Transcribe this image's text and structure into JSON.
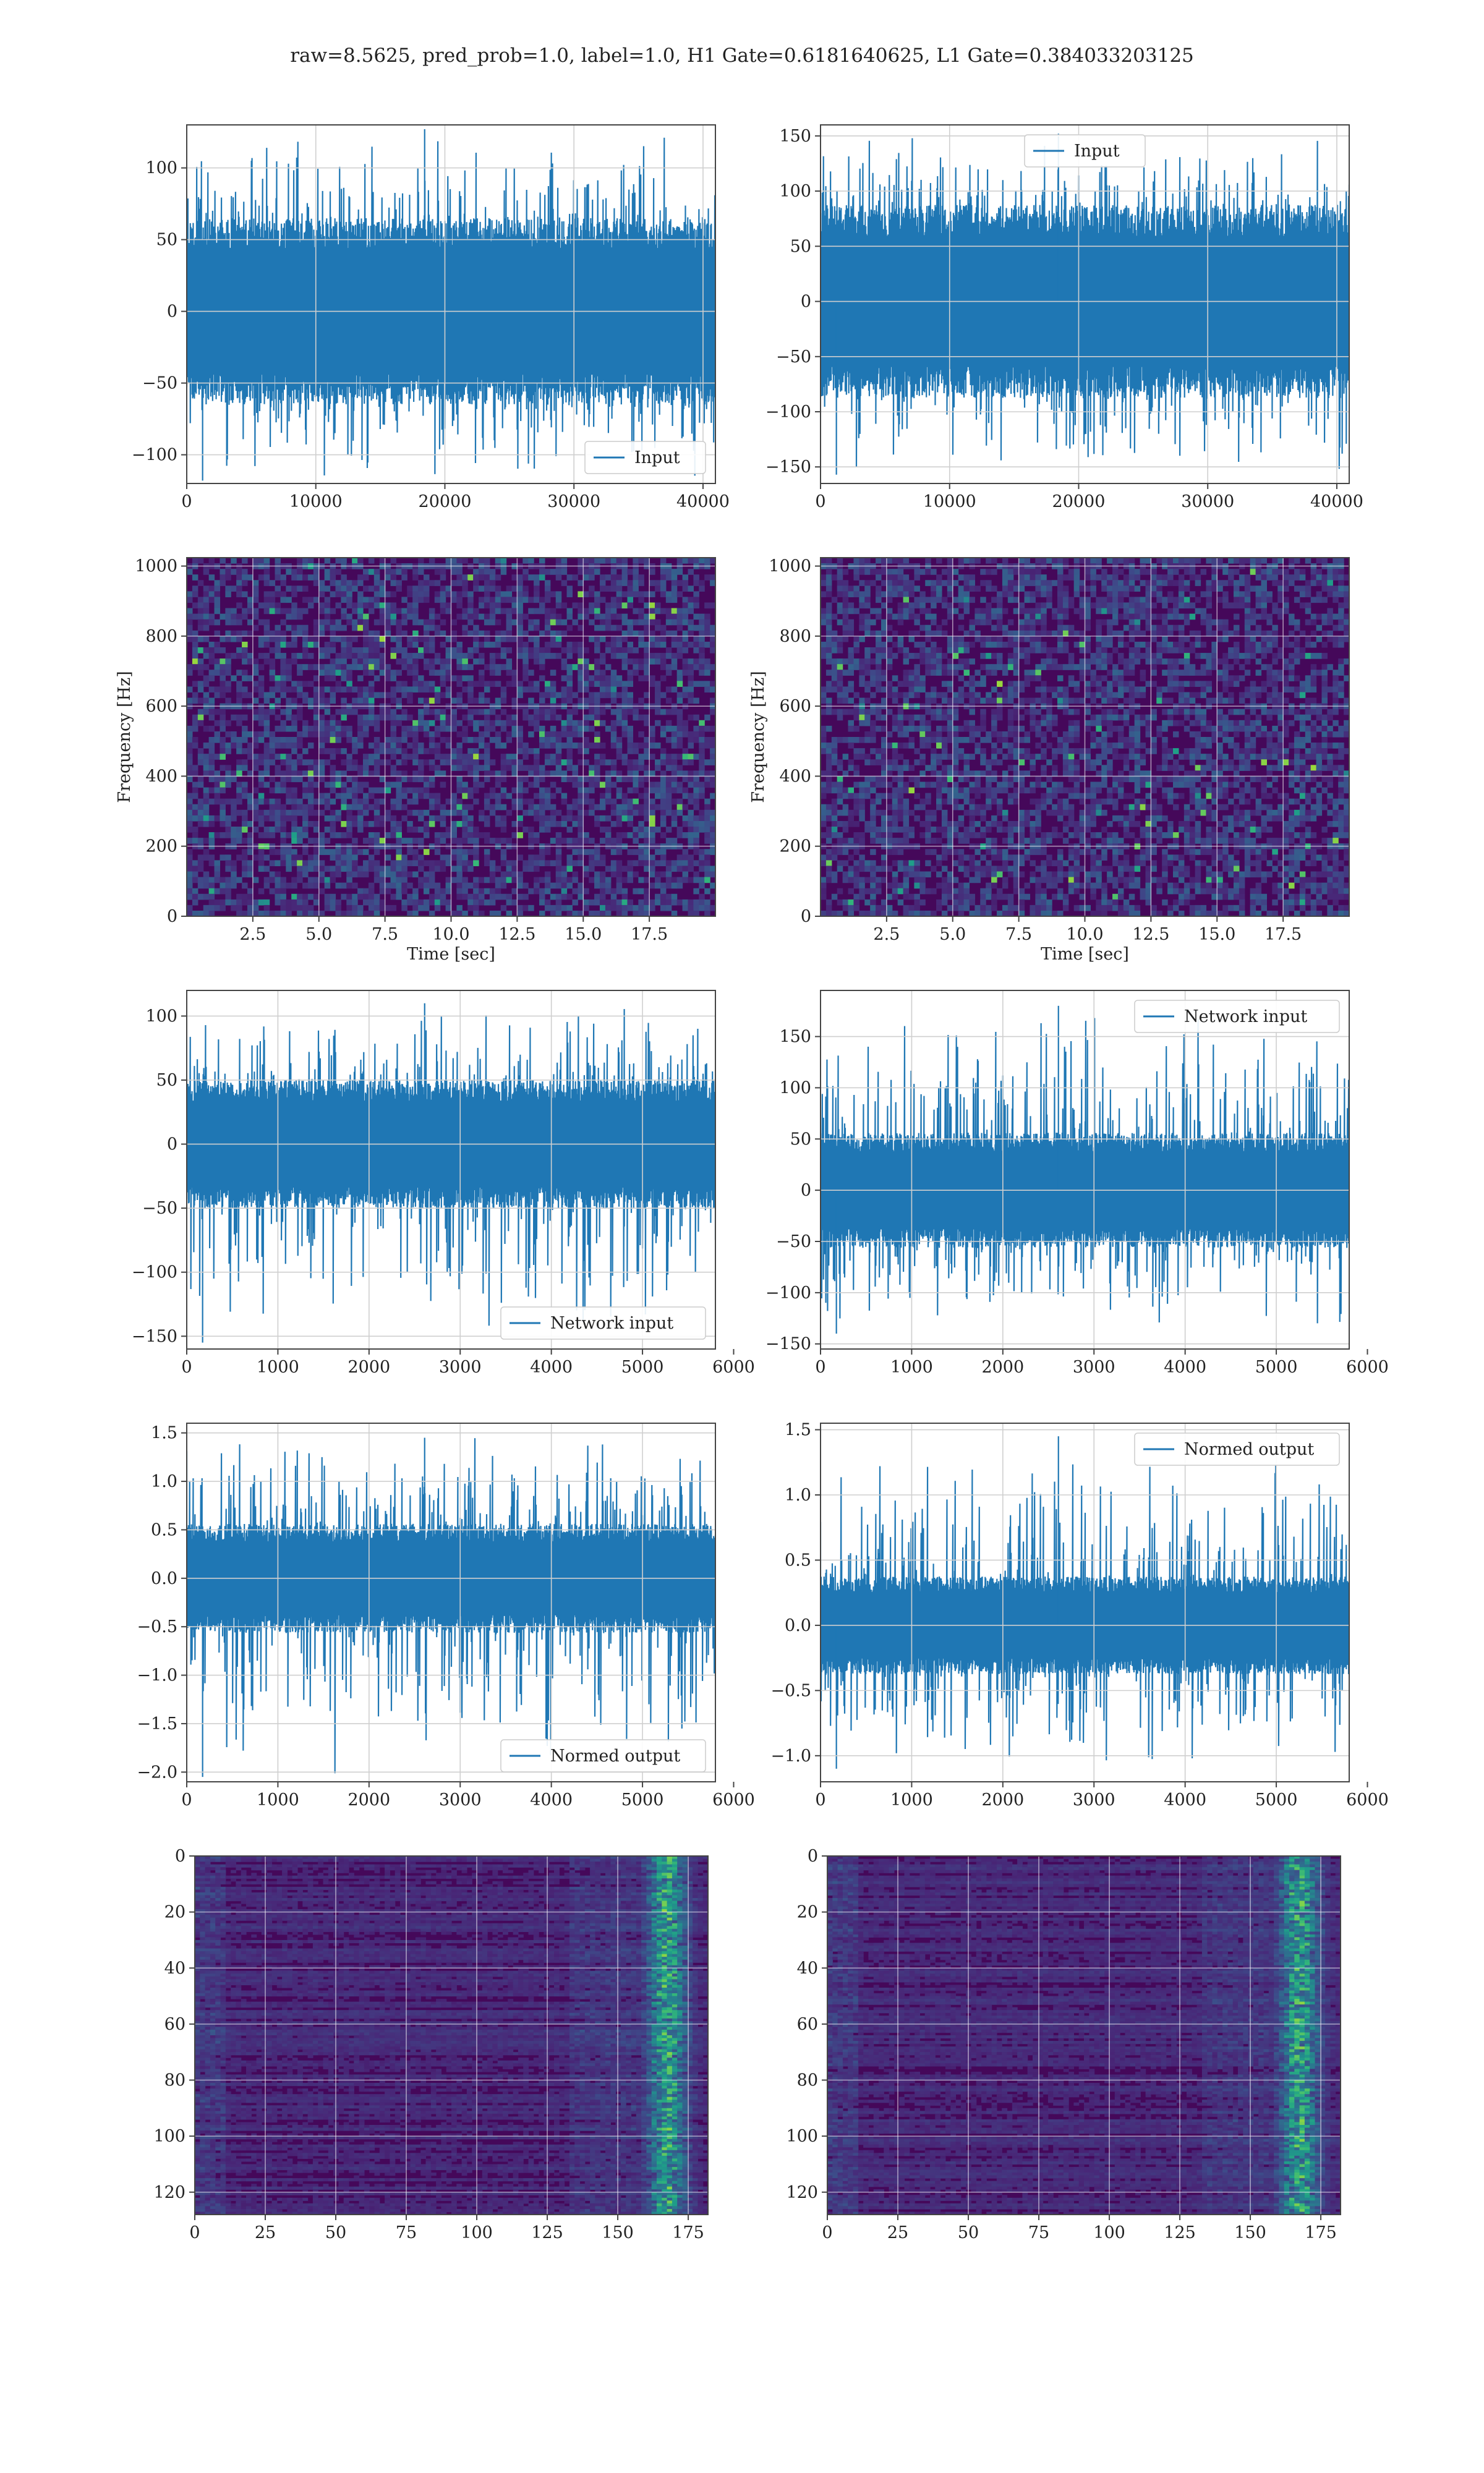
{
  "suptitle": "raw=8.5625, pred_prob=1.0, label=1.0, H1 Gate=0.6181640625, L1 Gate=0.384033203125",
  "colors": {
    "line": "#1f77b4",
    "grid": "#cfcfcf",
    "spine": "#444444",
    "cmap": "viridis"
  },
  "chart_data": [
    {
      "id": "h1-input",
      "type": "line",
      "row": 0,
      "col": 0,
      "series": [
        {
          "name": "Input",
          "n": 40960
        }
      ],
      "legend": "lower-right",
      "xlim": [
        0,
        40960
      ],
      "ylim": [
        -120,
        130
      ],
      "xticks": [
        0,
        10000,
        20000,
        30000,
        40000
      ],
      "yticks": [
        -100,
        -50,
        0,
        50,
        100
      ],
      "x_tick_labels": [
        "0",
        "10000",
        "20000",
        "30000",
        "40000"
      ],
      "y_tick_labels": [
        "−100",
        "−50",
        "0",
        "50",
        "100"
      ],
      "core_amp": 52,
      "spike_max": 127,
      "spike_min": -118,
      "grid": true
    },
    {
      "id": "l1-input",
      "type": "line",
      "row": 0,
      "col": 1,
      "series": [
        {
          "name": "Input",
          "n": 40960
        }
      ],
      "legend": "upper-center",
      "xlim": [
        0,
        40960
      ],
      "ylim": [
        -165,
        160
      ],
      "xticks": [
        0,
        10000,
        20000,
        30000,
        40000
      ],
      "yticks": [
        -150,
        -100,
        -50,
        0,
        50,
        100,
        150
      ],
      "x_tick_labels": [
        "0",
        "10000",
        "20000",
        "30000",
        "40000"
      ],
      "y_tick_labels": [
        "−150",
        "−100",
        "−50",
        "0",
        "50",
        "100",
        "150"
      ],
      "core_amp": 70,
      "spike_max": 152,
      "spike_min": -157,
      "grid": true
    },
    {
      "id": "h1-spectrogram",
      "type": "heatmap",
      "row": 1,
      "col": 0,
      "xlabel": "Time [sec]",
      "ylabel": "Frequency [Hz]",
      "xlim": [
        0,
        20
      ],
      "ylim": [
        0,
        1024
      ],
      "xticks": [
        2.5,
        5,
        7.5,
        10,
        12.5,
        15,
        17.5
      ],
      "yticks": [
        0,
        200,
        400,
        600,
        800,
        1000
      ],
      "x_tick_labels": [
        "2.5",
        "5.0",
        "7.5",
        "10.0",
        "12.5",
        "15.0",
        "17.5"
      ],
      "y_tick_labels": [
        "0",
        "200",
        "400",
        "600",
        "800",
        "1000"
      ],
      "colormap": "viridis",
      "grid": true
    },
    {
      "id": "l1-spectrogram",
      "type": "heatmap",
      "row": 1,
      "col": 1,
      "xlabel": "Time [sec]",
      "ylabel": "Frequency [Hz]",
      "xlim": [
        0,
        20
      ],
      "ylim": [
        0,
        1024
      ],
      "xticks": [
        2.5,
        5,
        7.5,
        10,
        12.5,
        15,
        17.5
      ],
      "yticks": [
        0,
        200,
        400,
        600,
        800,
        1000
      ],
      "x_tick_labels": [
        "2.5",
        "5.0",
        "7.5",
        "10.0",
        "12.5",
        "15.0",
        "17.5"
      ],
      "y_tick_labels": [
        "0",
        "200",
        "400",
        "600",
        "800",
        "1000"
      ],
      "colormap": "viridis",
      "grid": true
    },
    {
      "id": "h1-network-input",
      "type": "line",
      "row": 2,
      "col": 0,
      "series": [
        {
          "name": "Network input",
          "n": 5800
        }
      ],
      "legend": "lower-right",
      "xlim": [
        0,
        5800
      ],
      "ylim": [
        -160,
        120
      ],
      "xticks": [
        0,
        1000,
        2000,
        3000,
        4000,
        5000,
        6000
      ],
      "yticks": [
        -150,
        -100,
        -50,
        0,
        50,
        100
      ],
      "x_tick_labels": [
        "0",
        "1000",
        "2000",
        "3000",
        "4000",
        "5000",
        "6000"
      ],
      "y_tick_labels": [
        "−150",
        "−100",
        "−50",
        "0",
        "50",
        "100"
      ],
      "core_amp": 40,
      "spike_max": 110,
      "spike_min": -155,
      "grid": true
    },
    {
      "id": "l1-network-input",
      "type": "line",
      "row": 2,
      "col": 1,
      "series": [
        {
          "name": "Network input",
          "n": 5800
        }
      ],
      "legend": "upper-right",
      "xlim": [
        0,
        5800
      ],
      "ylim": [
        -155,
        195
      ],
      "xticks": [
        0,
        1000,
        2000,
        3000,
        4000,
        5000,
        6000
      ],
      "yticks": [
        -150,
        -100,
        -50,
        0,
        50,
        100,
        150
      ],
      "x_tick_labels": [
        "0",
        "1000",
        "2000",
        "3000",
        "4000",
        "5000",
        "6000"
      ],
      "y_tick_labels": [
        "−150",
        "−100",
        "−50",
        "0",
        "50",
        "100",
        "150"
      ],
      "core_amp": 45,
      "spike_max": 180,
      "spike_min": -140,
      "grid": true
    },
    {
      "id": "h1-normed-output",
      "type": "line",
      "row": 3,
      "col": 0,
      "series": [
        {
          "name": "Normed output",
          "n": 5800
        }
      ],
      "legend": "lower-right",
      "xlim": [
        0,
        5800
      ],
      "ylim": [
        -2.1,
        1.6
      ],
      "xticks": [
        0,
        1000,
        2000,
        3000,
        4000,
        5000,
        6000
      ],
      "yticks": [
        -2.0,
        -1.5,
        -1.0,
        -0.5,
        0.0,
        0.5,
        1.0,
        1.5
      ],
      "x_tick_labels": [
        "0",
        "1000",
        "2000",
        "3000",
        "4000",
        "5000",
        "6000"
      ],
      "y_tick_labels": [
        "−2.0",
        "−1.5",
        "−1.0",
        "−0.5",
        "0.0",
        "0.5",
        "1.0",
        "1.5"
      ],
      "core_amp": 0.45,
      "spike_max": 1.45,
      "spike_min": -2.05,
      "grid": true
    },
    {
      "id": "l1-normed-output",
      "type": "line",
      "row": 3,
      "col": 1,
      "series": [
        {
          "name": "Normed output",
          "n": 5800
        }
      ],
      "legend": "upper-right",
      "xlim": [
        0,
        5800
      ],
      "ylim": [
        -1.2,
        1.55
      ],
      "xticks": [
        0,
        1000,
        2000,
        3000,
        4000,
        5000,
        6000
      ],
      "yticks": [
        -1.0,
        -0.5,
        0.0,
        0.5,
        1.0,
        1.5
      ],
      "x_tick_labels": [
        "0",
        "1000",
        "2000",
        "3000",
        "4000",
        "5000",
        "6000"
      ],
      "y_tick_labels": [
        "−1.0",
        "−0.5",
        "0.0",
        "0.5",
        "1.0",
        "1.5"
      ],
      "core_amp": 0.3,
      "spike_max": 1.45,
      "spike_min": -1.1,
      "grid": true
    },
    {
      "id": "h1-feature-map",
      "type": "heatmap",
      "row": 4,
      "col": 0,
      "xlim": [
        0,
        182
      ],
      "ylim": [
        128,
        0
      ],
      "xticks": [
        0,
        25,
        50,
        75,
        100,
        125,
        150,
        175
      ],
      "yticks": [
        0,
        20,
        40,
        60,
        80,
        100,
        120
      ],
      "x_tick_labels": [
        "0",
        "25",
        "50",
        "75",
        "100",
        "125",
        "150",
        "175"
      ],
      "y_tick_labels": [
        "0",
        "20",
        "40",
        "60",
        "80",
        "100",
        "120"
      ],
      "colormap": "viridis",
      "grid": true
    },
    {
      "id": "l1-feature-map",
      "type": "heatmap",
      "row": 4,
      "col": 1,
      "xlim": [
        0,
        182
      ],
      "ylim": [
        128,
        0
      ],
      "xticks": [
        0,
        25,
        50,
        75,
        100,
        125,
        150,
        175
      ],
      "yticks": [
        0,
        20,
        40,
        60,
        80,
        100,
        120
      ],
      "x_tick_labels": [
        "0",
        "25",
        "50",
        "75",
        "100",
        "125",
        "150",
        "175"
      ],
      "y_tick_labels": [
        "0",
        "20",
        "40",
        "60",
        "80",
        "100",
        "120"
      ],
      "colormap": "viridis",
      "grid": true
    }
  ]
}
